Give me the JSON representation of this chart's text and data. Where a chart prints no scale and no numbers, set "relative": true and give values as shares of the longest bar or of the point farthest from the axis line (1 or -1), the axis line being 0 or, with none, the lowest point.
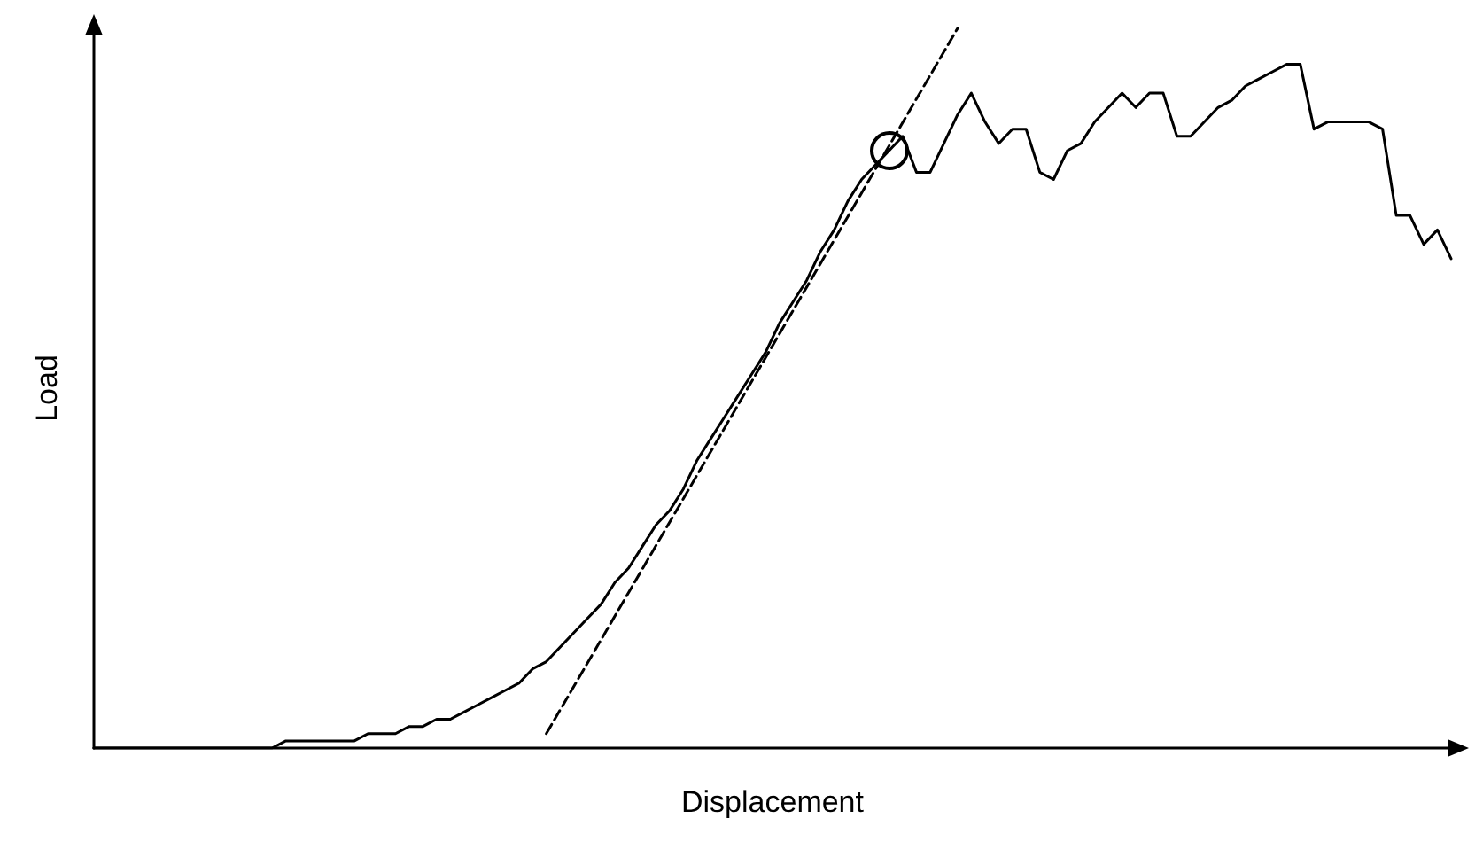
{
  "chart_data": {
    "type": "line",
    "relative": true,
    "xlabel": "Displacement",
    "ylabel": "Load",
    "grid": false,
    "categories": [
      null,
      null,
      null,
      null,
      null,
      null,
      null,
      null,
      null,
      null,
      null,
      null,
      null,
      null,
      null,
      null,
      null,
      null,
      null,
      null,
      null,
      null,
      null,
      null,
      null,
      null,
      null,
      null,
      null,
      null,
      null,
      null,
      null,
      null,
      null,
      null,
      null,
      null,
      null,
      null,
      null,
      null,
      null,
      null,
      null,
      null,
      null,
      null,
      null,
      null,
      null,
      null,
      null,
      null,
      null,
      null,
      null,
      null,
      null,
      null,
      null,
      null,
      null,
      null,
      null,
      null,
      null,
      null,
      null,
      null,
      null,
      null,
      null,
      null,
      null,
      null,
      null,
      null,
      null,
      null,
      null,
      null,
      null,
      null,
      null,
      null,
      null,
      null,
      null,
      null,
      null,
      null,
      null,
      null,
      null,
      null,
      null,
      null,
      null,
      null
    ],
    "series": [
      {
        "color": "#000000",
        "line_style": "solid",
        "values": [
          0,
          0,
          0,
          0,
          0,
          0,
          0,
          0,
          0,
          0,
          0,
          0,
          0,
          0,
          0.01,
          0.01,
          0.01,
          0.01,
          0.01,
          0.01,
          0.02,
          0.02,
          0.02,
          0.03,
          0.03,
          0.04,
          0.04,
          0.05,
          0.06,
          0.07,
          0.08,
          0.09,
          0.11,
          0.12,
          0.14,
          0.16,
          0.18,
          0.2,
          0.23,
          0.25,
          0.28,
          0.31,
          0.33,
          0.36,
          0.4,
          0.43,
          0.46,
          0.49,
          0.52,
          0.55,
          0.59,
          0.62,
          0.65,
          0.69,
          0.72,
          0.76,
          0.79,
          0.81,
          0.83,
          0.85,
          0.8,
          0.8,
          0.84,
          0.88,
          0.91,
          0.87,
          0.84,
          0.86,
          0.86,
          0.8,
          0.79,
          0.83,
          0.84,
          0.87,
          0.89,
          0.91,
          0.89,
          0.91,
          0.91,
          0.85,
          0.85,
          0.87,
          0.89,
          0.9,
          0.92,
          0.93,
          0.94,
          0.95,
          0.95,
          0.86,
          0.87,
          0.87,
          0.87,
          0.87,
          0.86,
          0.74,
          0.74,
          0.7,
          0.72,
          0.68
        ]
      },
      {
        "type": "line",
        "color": "#000000",
        "line_style": "dashed",
        "values": [
          null,
          null,
          null,
          null,
          null,
          null,
          null,
          null,
          null,
          null,
          null,
          null,
          null,
          null,
          null,
          null,
          null,
          null,
          null,
          null,
          null,
          null,
          null,
          null,
          null,
          null,
          null,
          null,
          null,
          null,
          null,
          null,
          null,
          0.02,
          null,
          null,
          null,
          null,
          null,
          null,
          null,
          null,
          null,
          null,
          null,
          null,
          null,
          null,
          null,
          null,
          null,
          null,
          null,
          null,
          null,
          null,
          null,
          null,
          null,
          null,
          null,
          null,
          null,
          1.0,
          null,
          null,
          null,
          null,
          null,
          null,
          null,
          null,
          null,
          null,
          null,
          null,
          null,
          null,
          null,
          null,
          null,
          null,
          null,
          null,
          null,
          null,
          null,
          null,
          null,
          null,
          null,
          null,
          null,
          null,
          null,
          null,
          null,
          null,
          null,
          null
        ]
      }
    ]
  }
}
